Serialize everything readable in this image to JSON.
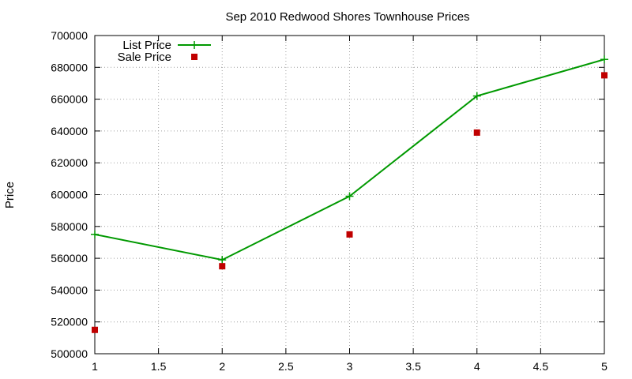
{
  "chart_data": {
    "type": "line",
    "title": "Sep 2010 Redwood Shores Townhouse Prices",
    "xlabel": "",
    "ylabel": "Price",
    "xlim": [
      1,
      5
    ],
    "ylim": [
      500000,
      700000
    ],
    "x_ticks": [
      "1",
      "1.5",
      "2",
      "2.5",
      "3",
      "3.5",
      "4",
      "4.5",
      "5"
    ],
    "x_tick_values": [
      1,
      1.5,
      2,
      2.5,
      3,
      3.5,
      4,
      4.5,
      5
    ],
    "y_ticks": [
      "500000",
      "520000",
      "540000",
      "560000",
      "580000",
      "600000",
      "620000",
      "640000",
      "660000",
      "680000",
      "700000"
    ],
    "y_tick_values": [
      500000,
      520000,
      540000,
      560000,
      580000,
      600000,
      620000,
      640000,
      660000,
      680000,
      700000
    ],
    "grid": true,
    "legend_position": "top-left",
    "series": [
      {
        "name": "List Price",
        "style": "line-with-plus",
        "color": "#009900",
        "x": [
          1,
          2,
          3,
          4,
          5
        ],
        "values": [
          575000,
          559000,
          599000,
          662000,
          685000
        ]
      },
      {
        "name": "Sale Price",
        "style": "square-markers",
        "color": "#c00000",
        "x": [
          1,
          2,
          3,
          4,
          5
        ],
        "values": [
          515000,
          555000,
          575000,
          639000,
          675000
        ]
      }
    ]
  }
}
